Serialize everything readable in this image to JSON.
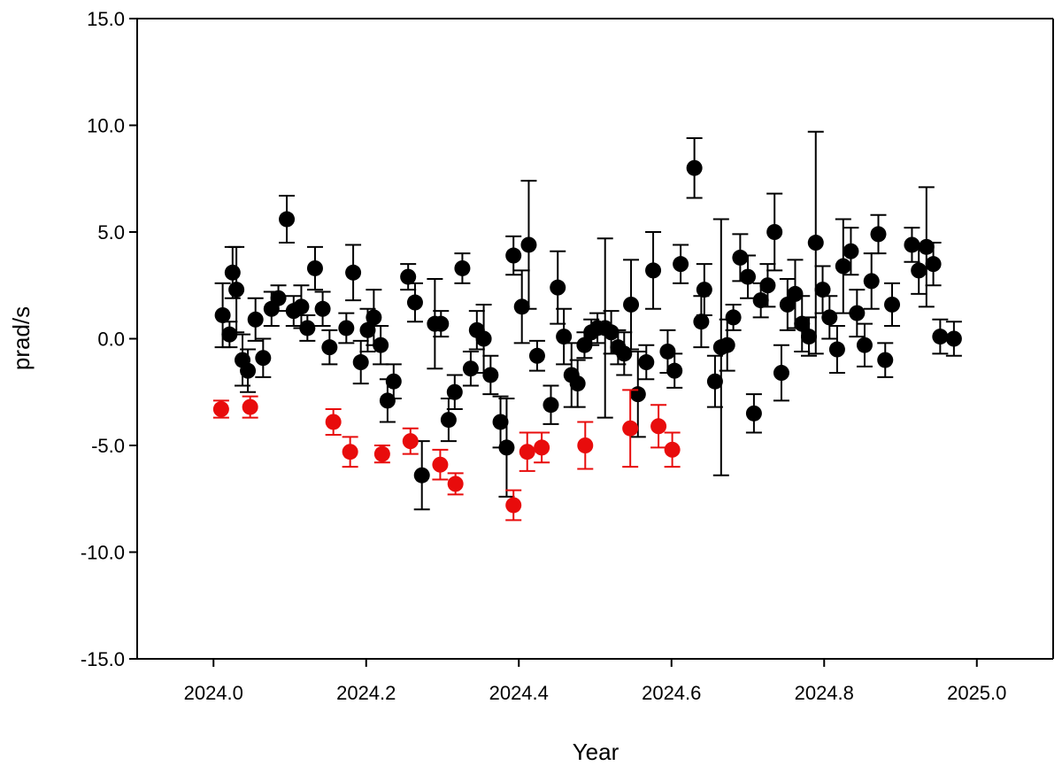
{
  "chart_data": {
    "type": "scatter",
    "title": "",
    "xlabel": "Year",
    "ylabel": "prad/s",
    "xlim": [
      2023.9,
      2025.1
    ],
    "ylim": [
      -15,
      15
    ],
    "xticks": [
      "2024.0",
      "2024.2",
      "2024.4",
      "2024.6",
      "2024.8",
      "2025.0"
    ],
    "xtick_values": [
      2024.0,
      2024.2,
      2024.4,
      2024.6,
      2024.8,
      2025.0
    ],
    "yticks": [
      "15.0",
      "10.0",
      "5.0",
      "0.0",
      "-5.0",
      "-10.0",
      "-15.0"
    ],
    "ytick_values": [
      15,
      10,
      5,
      0,
      -5,
      -10,
      -15
    ],
    "grid": false,
    "legend": "none",
    "colors": {
      "black_series": "#000000",
      "red_series": "#e80c0c"
    },
    "series": [
      {
        "color": "#000000",
        "points": [
          {
            "x": 2024.012,
            "y": 1.1,
            "err": 1.5
          },
          {
            "x": 2024.021,
            "y": 0.2,
            "err": 0.6
          },
          {
            "x": 2024.025,
            "y": 3.1,
            "err": 1.2
          },
          {
            "x": 2024.03,
            "y": 2.3,
            "err": 2.0
          },
          {
            "x": 2024.038,
            "y": -1.0,
            "err": 1.2
          },
          {
            "x": 2024.045,
            "y": -1.5,
            "err": 1.0
          },
          {
            "x": 2024.055,
            "y": 0.9,
            "err": 1.0
          },
          {
            "x": 2024.065,
            "y": -0.9,
            "err": 0.9
          },
          {
            "x": 2024.076,
            "y": 1.4,
            "err": 0.8
          },
          {
            "x": 2024.085,
            "y": 1.9,
            "err": 0.6
          },
          {
            "x": 2024.096,
            "y": 5.6,
            "err": 1.1
          },
          {
            "x": 2024.105,
            "y": 1.3,
            "err": 0.7
          },
          {
            "x": 2024.115,
            "y": 1.5,
            "err": 1.0
          },
          {
            "x": 2024.123,
            "y": 0.5,
            "err": 0.6
          },
          {
            "x": 2024.133,
            "y": 3.3,
            "err": 1.0
          },
          {
            "x": 2024.143,
            "y": 1.4,
            "err": 0.8
          },
          {
            "x": 2024.152,
            "y": -0.4,
            "err": 0.8
          },
          {
            "x": 2024.174,
            "y": 0.5,
            "err": 0.7
          },
          {
            "x": 2024.183,
            "y": 3.1,
            "err": 1.3
          },
          {
            "x": 2024.193,
            "y": -1.1,
            "err": 1.0
          },
          {
            "x": 2024.202,
            "y": 0.4,
            "err": 1.0
          },
          {
            "x": 2024.21,
            "y": 1.0,
            "err": 1.3
          },
          {
            "x": 2024.219,
            "y": -0.3,
            "err": 0.9
          },
          {
            "x": 2024.228,
            "y": -2.9,
            "err": 1.0
          },
          {
            "x": 2024.236,
            "y": -2.0,
            "err": 0.8
          },
          {
            "x": 2024.255,
            "y": 2.9,
            "err": 0.6
          },
          {
            "x": 2024.264,
            "y": 1.7,
            "err": 0.9
          },
          {
            "x": 2024.273,
            "y": -6.4,
            "err": 1.6
          },
          {
            "x": 2024.29,
            "y": 0.7,
            "err": 2.1
          },
          {
            "x": 2024.298,
            "y": 0.7,
            "err": 0.6
          },
          {
            "x": 2024.308,
            "y": -3.8,
            "err": 1.0
          },
          {
            "x": 2024.316,
            "y": -2.5,
            "err": 0.8
          },
          {
            "x": 2024.326,
            "y": 3.3,
            "err": 0.7
          },
          {
            "x": 2024.337,
            "y": -1.4,
            "err": 0.8
          },
          {
            "x": 2024.345,
            "y": 0.4,
            "err": 0.9
          },
          {
            "x": 2024.354,
            "y": 0.0,
            "err": 1.6
          },
          {
            "x": 2024.363,
            "y": -1.7,
            "err": 0.9
          },
          {
            "x": 2024.376,
            "y": -3.9,
            "err": 1.2
          },
          {
            "x": 2024.384,
            "y": -5.1,
            "err": 2.3
          },
          {
            "x": 2024.393,
            "y": 3.9,
            "err": 0.9
          },
          {
            "x": 2024.404,
            "y": 1.5,
            "err": 1.7
          },
          {
            "x": 2024.413,
            "y": 4.4,
            "err": 3.0
          },
          {
            "x": 2024.424,
            "y": -0.8,
            "err": 0.7
          },
          {
            "x": 2024.442,
            "y": -3.1,
            "err": 0.9
          },
          {
            "x": 2024.451,
            "y": 2.4,
            "err": 1.7
          },
          {
            "x": 2024.459,
            "y": 0.1,
            "err": 1.3
          },
          {
            "x": 2024.469,
            "y": -1.7,
            "err": 1.5
          },
          {
            "x": 2024.477,
            "y": -2.1,
            "err": 1.1
          },
          {
            "x": 2024.486,
            "y": -0.3,
            "err": 0.6
          },
          {
            "x": 2024.495,
            "y": 0.3,
            "err": 0.6
          },
          {
            "x": 2024.503,
            "y": 0.5,
            "err": 0.7
          },
          {
            "x": 2024.513,
            "y": 0.5,
            "err": 4.2
          },
          {
            "x": 2024.521,
            "y": 0.3,
            "err": 1.0
          },
          {
            "x": 2024.53,
            "y": -0.4,
            "err": 0.8
          },
          {
            "x": 2024.538,
            "y": -0.7,
            "err": 1.0
          },
          {
            "x": 2024.547,
            "y": 1.6,
            "err": 2.1
          },
          {
            "x": 2024.556,
            "y": -2.6,
            "err": 2.0
          },
          {
            "x": 2024.567,
            "y": -1.1,
            "err": 0.8
          },
          {
            "x": 2024.576,
            "y": 3.2,
            "err": 1.8
          },
          {
            "x": 2024.595,
            "y": -0.6,
            "err": 1.0
          },
          {
            "x": 2024.604,
            "y": -1.5,
            "err": 0.8
          },
          {
            "x": 2024.612,
            "y": 3.5,
            "err": 0.9
          },
          {
            "x": 2024.63,
            "y": 8.0,
            "err": 1.4
          },
          {
            "x": 2024.639,
            "y": 0.8,
            "err": 1.2
          },
          {
            "x": 2024.643,
            "y": 2.3,
            "err": 1.2
          },
          {
            "x": 2024.657,
            "y": -2.0,
            "err": 1.2
          },
          {
            "x": 2024.665,
            "y": -0.4,
            "err": 6.0
          },
          {
            "x": 2024.673,
            "y": -0.3,
            "err": 1.2
          },
          {
            "x": 2024.681,
            "y": 1.0,
            "err": 0.6
          },
          {
            "x": 2024.69,
            "y": 3.8,
            "err": 1.1
          },
          {
            "x": 2024.7,
            "y": 2.9,
            "err": 1.0
          },
          {
            "x": 2024.708,
            "y": -3.5,
            "err": 0.9
          },
          {
            "x": 2024.717,
            "y": 1.8,
            "err": 0.8
          },
          {
            "x": 2024.726,
            "y": 2.5,
            "err": 1.0
          },
          {
            "x": 2024.735,
            "y": 5.0,
            "err": 1.8
          },
          {
            "x": 2024.744,
            "y": -1.6,
            "err": 1.3
          },
          {
            "x": 2024.752,
            "y": 1.6,
            "err": 1.2
          },
          {
            "x": 2024.762,
            "y": 2.1,
            "err": 1.6
          },
          {
            "x": 2024.771,
            "y": 0.7,
            "err": 1.3
          },
          {
            "x": 2024.78,
            "y": 0.1,
            "err": 0.9
          },
          {
            "x": 2024.789,
            "y": 4.5,
            "err": 5.2
          },
          {
            "x": 2024.798,
            "y": 2.3,
            "err": 1.1
          },
          {
            "x": 2024.807,
            "y": 1.0,
            "err": 1.0
          },
          {
            "x": 2024.817,
            "y": -0.5,
            "err": 1.1
          },
          {
            "x": 2024.825,
            "y": 3.4,
            "err": 2.2
          },
          {
            "x": 2024.835,
            "y": 4.1,
            "err": 1.1
          },
          {
            "x": 2024.843,
            "y": 1.2,
            "err": 1.1
          },
          {
            "x": 2024.853,
            "y": -0.3,
            "err": 1.0
          },
          {
            "x": 2024.862,
            "y": 2.7,
            "err": 1.3
          },
          {
            "x": 2024.871,
            "y": 4.9,
            "err": 0.9
          },
          {
            "x": 2024.88,
            "y": -1.0,
            "err": 0.8
          },
          {
            "x": 2024.889,
            "y": 1.6,
            "err": 1.0
          },
          {
            "x": 2024.915,
            "y": 4.4,
            "err": 0.8
          },
          {
            "x": 2024.924,
            "y": 3.2,
            "err": 1.1
          },
          {
            "x": 2024.934,
            "y": 4.3,
            "err": 2.8
          },
          {
            "x": 2024.943,
            "y": 3.5,
            "err": 1.0
          },
          {
            "x": 2024.952,
            "y": 0.1,
            "err": 0.8
          },
          {
            "x": 2024.97,
            "y": 0.0,
            "err": 0.8
          }
        ]
      },
      {
        "color": "#e80c0c",
        "points": [
          {
            "x": 2024.01,
            "y": -3.3,
            "err": 0.4
          },
          {
            "x": 2024.048,
            "y": -3.2,
            "err": 0.5
          },
          {
            "x": 2024.157,
            "y": -3.9,
            "err": 0.6
          },
          {
            "x": 2024.179,
            "y": -5.3,
            "err": 0.7
          },
          {
            "x": 2024.221,
            "y": -5.4,
            "err": 0.4
          },
          {
            "x": 2024.258,
            "y": -4.8,
            "err": 0.6
          },
          {
            "x": 2024.297,
            "y": -5.9,
            "err": 0.7
          },
          {
            "x": 2024.317,
            "y": -6.8,
            "err": 0.5
          },
          {
            "x": 2024.393,
            "y": -7.8,
            "err": 0.7
          },
          {
            "x": 2024.411,
            "y": -5.3,
            "err": 0.9
          },
          {
            "x": 2024.43,
            "y": -5.1,
            "err": 0.7
          },
          {
            "x": 2024.487,
            "y": -5.0,
            "err": 1.1
          },
          {
            "x": 2024.546,
            "y": -4.2,
            "err": 1.8
          },
          {
            "x": 2024.583,
            "y": -4.1,
            "err": 1.0
          },
          {
            "x": 2024.601,
            "y": -5.2,
            "err": 0.8
          }
        ]
      }
    ]
  }
}
